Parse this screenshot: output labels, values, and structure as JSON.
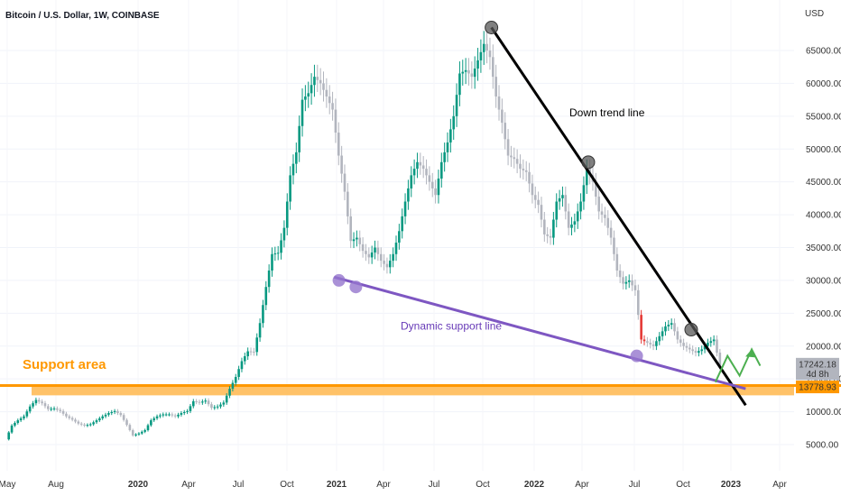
{
  "chart_data": {
    "type": "candlestick",
    "title": "Bitcoin / U.S. Dollar, 1W, COINBASE",
    "currency_label": "USD",
    "y_ticks": [
      5000,
      10000,
      15000,
      20000,
      25000,
      30000,
      35000,
      40000,
      45000,
      50000,
      55000,
      60000,
      65000
    ],
    "y_tick_labels": [
      "5000.00",
      "10000.00",
      "15000.00",
      "20000.00",
      "25000.00",
      "30000.00",
      "35000.00",
      "40000.00",
      "45000.00",
      "50000.00",
      "55000.00",
      "60000.00",
      "65000.00"
    ],
    "ylim": [
      1500,
      71000
    ],
    "x_tick_labels": [
      "May",
      "Aug",
      "2020",
      "Apr",
      "Jul",
      "Oct",
      "2021",
      "Apr",
      "Jul",
      "Oct",
      "2022",
      "Apr",
      "Jul",
      "Oct",
      "2023",
      "Apr"
    ],
    "bold_x_ticks": [
      "2020",
      "2021",
      "2022",
      "2023"
    ],
    "x_range": [
      "2019-05",
      "2023-05"
    ],
    "close_series": [
      [
        0,
        5800
      ],
      [
        5,
        7900
      ],
      [
        10,
        8700
      ],
      [
        15,
        9300
      ],
      [
        20,
        10800
      ],
      [
        25,
        11800
      ],
      [
        30,
        11300
      ],
      [
        35,
        10400
      ],
      [
        40,
        10500
      ],
      [
        45,
        10100
      ],
      [
        50,
        9300
      ],
      [
        55,
        8800
      ],
      [
        60,
        8200
      ],
      [
        65,
        7900
      ],
      [
        70,
        8100
      ],
      [
        75,
        8700
      ],
      [
        80,
        9300
      ],
      [
        85,
        9800
      ],
      [
        90,
        10100
      ],
      [
        95,
        9500
      ],
      [
        100,
        8000
      ],
      [
        105,
        6400
      ],
      [
        110,
        6700
      ],
      [
        115,
        7200
      ],
      [
        120,
        8700
      ],
      [
        125,
        9300
      ],
      [
        130,
        9600
      ],
      [
        135,
        9600
      ],
      [
        140,
        9300
      ],
      [
        145,
        9800
      ],
      [
        150,
        10100
      ],
      [
        155,
        11600
      ],
      [
        160,
        11400
      ],
      [
        165,
        11700
      ],
      [
        170,
        10600
      ],
      [
        175,
        10800
      ],
      [
        180,
        11400
      ],
      [
        185,
        13500
      ],
      [
        190,
        15300
      ],
      [
        195,
        17700
      ],
      [
        200,
        19200
      ],
      [
        205,
        19100
      ],
      [
        210,
        23500
      ],
      [
        215,
        29000
      ],
      [
        220,
        34000
      ],
      [
        225,
        34200
      ],
      [
        230,
        38000
      ],
      [
        235,
        46000
      ],
      [
        240,
        49500
      ],
      [
        245,
        57500
      ],
      [
        250,
        58500
      ],
      [
        255,
        61000
      ],
      [
        260,
        60000
      ],
      [
        265,
        58000
      ],
      [
        270,
        56000
      ],
      [
        275,
        49000
      ],
      [
        280,
        43500
      ],
      [
        285,
        36000
      ],
      [
        290,
        36500
      ],
      [
        295,
        34500
      ],
      [
        300,
        33500
      ],
      [
        305,
        35000
      ],
      [
        310,
        33000
      ],
      [
        315,
        32000
      ],
      [
        320,
        34000
      ],
      [
        325,
        37500
      ],
      [
        330,
        42000
      ],
      [
        335,
        46000
      ],
      [
        340,
        48000
      ],
      [
        345,
        47000
      ],
      [
        350,
        45000
      ],
      [
        355,
        43000
      ],
      [
        360,
        48000
      ],
      [
        365,
        51000
      ],
      [
        370,
        55000
      ],
      [
        375,
        61500
      ],
      [
        380,
        62000
      ],
      [
        385,
        61000
      ],
      [
        390,
        63500
      ],
      [
        395,
        66000
      ],
      [
        400,
        64000
      ],
      [
        405,
        58000
      ],
      [
        410,
        54000
      ],
      [
        415,
        49000
      ],
      [
        420,
        48500
      ],
      [
        425,
        47000
      ],
      [
        430,
        46500
      ],
      [
        435,
        43000
      ],
      [
        440,
        41500
      ],
      [
        445,
        37000
      ],
      [
        450,
        36500
      ],
      [
        455,
        42000
      ],
      [
        460,
        43000
      ],
      [
        465,
        38000
      ],
      [
        470,
        39000
      ],
      [
        475,
        42000
      ],
      [
        480,
        47000
      ],
      [
        485,
        45000
      ],
      [
        490,
        40500
      ],
      [
        495,
        39500
      ],
      [
        500,
        36500
      ],
      [
        505,
        31500
      ],
      [
        510,
        29500
      ],
      [
        515,
        30000
      ],
      [
        520,
        28500
      ],
      [
        525,
        21000
      ],
      [
        530,
        20500
      ],
      [
        535,
        20000
      ],
      [
        540,
        21500
      ],
      [
        545,
        23000
      ],
      [
        550,
        23500
      ],
      [
        555,
        21000
      ],
      [
        560,
        20000
      ],
      [
        565,
        19500
      ],
      [
        570,
        19000
      ],
      [
        575,
        19500
      ],
      [
        580,
        20500
      ],
      [
        585,
        21000
      ],
      [
        590,
        17000
      ]
    ],
    "price_labels": [
      {
        "value": 17242.18,
        "text": "17242.18",
        "bg": "#b2b5be",
        "fg": "#131722"
      },
      {
        "value": 15800,
        "text": "4d 8h",
        "bg": "#b2b5be",
        "fg": "#131722"
      },
      {
        "value": 13778.93,
        "text": "13778.93",
        "bg": "#ff9800",
        "fg": "#131722"
      }
    ],
    "annotations": [
      {
        "text": "Down trend line",
        "x": 3,
        "y": 55000,
        "color": "#000000"
      },
      {
        "text": "Dynamic support line",
        "x": 7,
        "y": 22500,
        "color": "#673ab7"
      },
      {
        "text": "Support area",
        "x": 0,
        "y": 16500,
        "color": "#ff9800"
      }
    ],
    "down_trend_line": [
      [
        400,
        68500
      ],
      [
        610,
        11000
      ]
    ],
    "down_trend_points": [
      [
        400,
        68500
      ],
      [
        480,
        48000
      ],
      [
        565,
        22500
      ]
    ],
    "support_line": [
      [
        270,
        30500
      ],
      [
        610,
        13500
      ]
    ],
    "support_points": [
      [
        274,
        30000
      ],
      [
        288,
        29000
      ],
      [
        520,
        18500
      ]
    ],
    "support_area": [
      12500,
      14000
    ],
    "arrow_path": [
      [
        585,
        14500
      ],
      [
        595,
        18500
      ],
      [
        605,
        15500
      ],
      [
        615,
        19500
      ],
      [
        622,
        17000
      ]
    ]
  },
  "colors": {
    "up": "#089981",
    "down": "#b2b5be",
    "support_line": "#7e57c2",
    "support_point": "#9575cd",
    "trend_line": "#000000",
    "trend_point": "#555555",
    "support_area": "#ffb74d",
    "support_edge": "#ff9800",
    "arrow": "#4caf50"
  }
}
